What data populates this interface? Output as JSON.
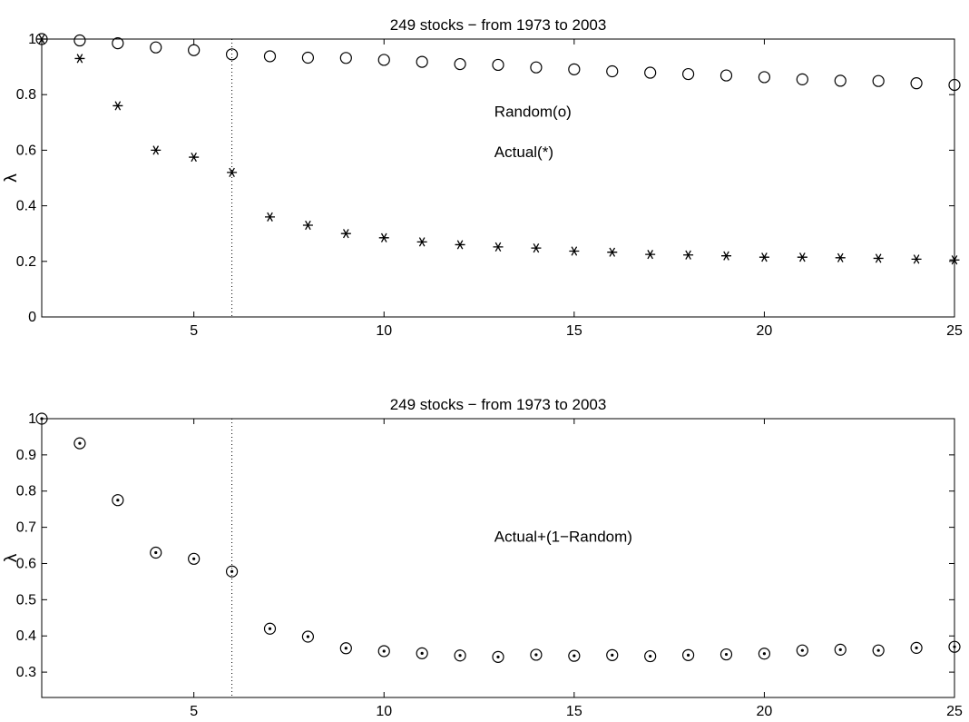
{
  "chart_data": [
    {
      "type": "scatter",
      "title": "249 stocks − from 1973 to 2003",
      "ylabel": "λ",
      "xlabel": "",
      "xlim": [
        1,
        25
      ],
      "ylim": [
        0,
        1
      ],
      "xticks": [
        5,
        10,
        15,
        20,
        25
      ],
      "yticks": [
        0,
        0.2,
        0.4,
        0.6,
        0.8,
        1
      ],
      "ytick_labels": [
        "0",
        "0.2",
        "0.4",
        "0.6",
        "0.8",
        "1"
      ],
      "grid": false,
      "vline_x": 6,
      "x": [
        1,
        2,
        3,
        4,
        5,
        6,
        7,
        8,
        9,
        10,
        11,
        12,
        13,
        14,
        15,
        16,
        17,
        18,
        19,
        20,
        21,
        22,
        23,
        24,
        25
      ],
      "series": [
        {
          "marker": "circle",
          "values": [
            1.0,
            0.995,
            0.985,
            0.97,
            0.96,
            0.945,
            0.938,
            0.933,
            0.932,
            0.925,
            0.918,
            0.91,
            0.907,
            0.898,
            0.891,
            0.884,
            0.879,
            0.874,
            0.869,
            0.863,
            0.855,
            0.85,
            0.849,
            0.841,
            0.835
          ]
        },
        {
          "marker": "asterisk",
          "values": [
            1.0,
            0.93,
            0.76,
            0.6,
            0.575,
            0.52,
            0.36,
            0.33,
            0.3,
            0.285,
            0.27,
            0.26,
            0.252,
            0.248,
            0.237,
            0.233,
            0.225,
            0.223,
            0.22,
            0.215,
            0.215,
            0.213,
            0.211,
            0.208,
            0.205
          ]
        }
      ],
      "annotations": [
        {
          "text": "Random(o)",
          "x": 12.9,
          "y": 0.72
        },
        {
          "text": "Actual(*)",
          "x": 12.9,
          "y": 0.575
        }
      ]
    },
    {
      "type": "scatter",
      "title": "249 stocks − from 1973 to 2003",
      "ylabel": "λ",
      "xlabel": "",
      "xlim": [
        1,
        25
      ],
      "ylim": [
        0.23,
        1
      ],
      "xticks": [
        5,
        10,
        15,
        20,
        25
      ],
      "yticks": [
        0.3,
        0.4,
        0.5,
        0.6,
        0.7,
        0.8,
        0.9,
        1
      ],
      "ytick_labels": [
        "0.3",
        "0.4",
        "0.5",
        "0.6",
        "0.7",
        "0.8",
        "0.9",
        "1"
      ],
      "grid": false,
      "vline_x": 6,
      "x": [
        1,
        2,
        3,
        4,
        5,
        6,
        7,
        8,
        9,
        10,
        11,
        12,
        13,
        14,
        15,
        16,
        17,
        18,
        19,
        20,
        21,
        22,
        23,
        24,
        25
      ],
      "series": [
        {
          "marker": "circle-dot",
          "values": [
            1.0,
            0.932,
            0.775,
            0.63,
            0.613,
            0.578,
            0.42,
            0.398,
            0.366,
            0.358,
            0.352,
            0.346,
            0.342,
            0.348,
            0.345,
            0.347,
            0.344,
            0.347,
            0.349,
            0.351,
            0.36,
            0.362,
            0.36,
            0.367,
            0.37
          ]
        }
      ],
      "annotations": [
        {
          "text": "Actual+(1−Random)",
          "x": 12.9,
          "y": 0.66
        }
      ]
    }
  ]
}
